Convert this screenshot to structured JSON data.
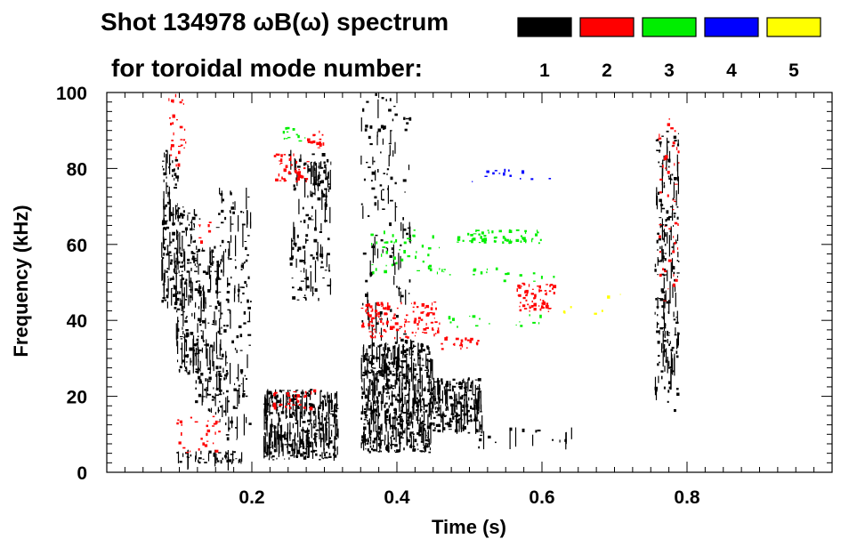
{
  "chart_data": {
    "type": "heatmap",
    "title_line1": "Shot 134978 ωB(ω) spectrum",
    "title_line2": "for toroidal mode number:",
    "xlabel": "Time (s)",
    "ylabel": "Frequency (kHz)",
    "xlim": [
      0.0,
      1.0
    ],
    "ylim": [
      0,
      100
    ],
    "xticks": [
      0.2,
      0.4,
      0.6,
      0.8
    ],
    "xtick_labels": [
      "0.2",
      "0.4",
      "0.6",
      "0.8"
    ],
    "yticks": [
      0,
      20,
      40,
      60,
      80,
      100
    ],
    "ytick_labels": [
      "0",
      "20",
      "40",
      "60",
      "80",
      "100"
    ],
    "legend": [
      {
        "label": "1",
        "color": "#000000"
      },
      {
        "label": "2",
        "color": "#ff0000"
      },
      {
        "label": "3",
        "color": "#00ee00"
      },
      {
        "label": "4",
        "color": "#0000ff"
      },
      {
        "label": "5",
        "color": "#ffff00"
      }
    ],
    "blobs": [
      {
        "mode": 1,
        "t": [
          0.075,
          0.1
        ],
        "f": [
          42,
          85
        ],
        "density": 0.5
      },
      {
        "mode": 1,
        "t": [
          0.095,
          0.13
        ],
        "f": [
          25,
          70
        ],
        "density": 0.45
      },
      {
        "mode": 1,
        "t": [
          0.12,
          0.16
        ],
        "f": [
          15,
          60
        ],
        "density": 0.35
      },
      {
        "mode": 1,
        "t": [
          0.15,
          0.2
        ],
        "f": [
          8,
          75
        ],
        "density": 0.2
      },
      {
        "mode": 1,
        "t": [
          0.095,
          0.19
        ],
        "f": [
          2,
          6
        ],
        "density": 0.5
      },
      {
        "mode": 1,
        "t": [
          0.25,
          0.31
        ],
        "f": [
          45,
          85
        ],
        "density": 0.22
      },
      {
        "mode": 1,
        "t": [
          0.28,
          0.31
        ],
        "f": [
          72,
          82
        ],
        "density": 0.7
      },
      {
        "mode": 1,
        "t": [
          0.215,
          0.32
        ],
        "f": [
          3,
          22
        ],
        "density": 0.8
      },
      {
        "mode": 1,
        "t": [
          0.35,
          0.45
        ],
        "f": [
          5,
          35
        ],
        "density": 0.85
      },
      {
        "mode": 1,
        "t": [
          0.35,
          0.42
        ],
        "f": [
          30,
          100
        ],
        "density": 0.12
      },
      {
        "mode": 1,
        "t": [
          0.445,
          0.52
        ],
        "f": [
          10,
          25
        ],
        "density": 0.8
      },
      {
        "mode": 1,
        "t": [
          0.755,
          0.79
        ],
        "f": [
          15,
          90
        ],
        "density": 0.35
      },
      {
        "mode": 1,
        "t": [
          0.5,
          0.66
        ],
        "f": [
          6,
          12
        ],
        "density": 0.08
      },
      {
        "mode": 2,
        "t": [
          0.085,
          0.11
        ],
        "f": [
          80,
          100
        ],
        "density": 0.25
      },
      {
        "mode": 2,
        "t": [
          0.095,
          0.16
        ],
        "f": [
          5,
          15
        ],
        "density": 0.18
      },
      {
        "mode": 2,
        "t": [
          0.125,
          0.145
        ],
        "f": [
          60,
          66
        ],
        "density": 0.25
      },
      {
        "mode": 2,
        "t": [
          0.23,
          0.28
        ],
        "f": [
          76,
          84
        ],
        "density": 0.45
      },
      {
        "mode": 2,
        "t": [
          0.275,
          0.3
        ],
        "f": [
          84,
          90
        ],
        "density": 0.45
      },
      {
        "mode": 2,
        "t": [
          0.225,
          0.29
        ],
        "f": [
          16,
          22
        ],
        "density": 0.3
      },
      {
        "mode": 2,
        "t": [
          0.35,
          0.46
        ],
        "f": [
          35,
          45
        ],
        "density": 0.45
      },
      {
        "mode": 2,
        "t": [
          0.46,
          0.52
        ],
        "f": [
          32,
          36
        ],
        "density": 0.35
      },
      {
        "mode": 2,
        "t": [
          0.565,
          0.62
        ],
        "f": [
          42,
          50
        ],
        "density": 0.6
      },
      {
        "mode": 2,
        "t": [
          0.76,
          0.79
        ],
        "f": [
          45,
          95
        ],
        "density": 0.12
      },
      {
        "mode": 3,
        "t": [
          0.23,
          0.28
        ],
        "f": [
          87,
          92
        ],
        "density": 0.2
      },
      {
        "mode": 3,
        "t": [
          0.48,
          0.6
        ],
        "f": [
          60,
          64
        ],
        "density": 0.5
      },
      {
        "mode": 3,
        "t": [
          0.36,
          0.46
        ],
        "f": [
          52,
          64
        ],
        "density": 0.15
      },
      {
        "mode": 3,
        "t": [
          0.45,
          0.62
        ],
        "f": [
          50,
          54
        ],
        "density": 0.12
      },
      {
        "mode": 3,
        "t": [
          0.47,
          0.6
        ],
        "f": [
          38,
          42
        ],
        "density": 0.12
      },
      {
        "mode": 4,
        "t": [
          0.5,
          0.62
        ],
        "f": [
          76,
          80
        ],
        "density": 0.12
      },
      {
        "mode": 5,
        "t": [
          0.62,
          0.71
        ],
        "f": [
          40,
          48
        ],
        "density": 0.04
      }
    ]
  }
}
